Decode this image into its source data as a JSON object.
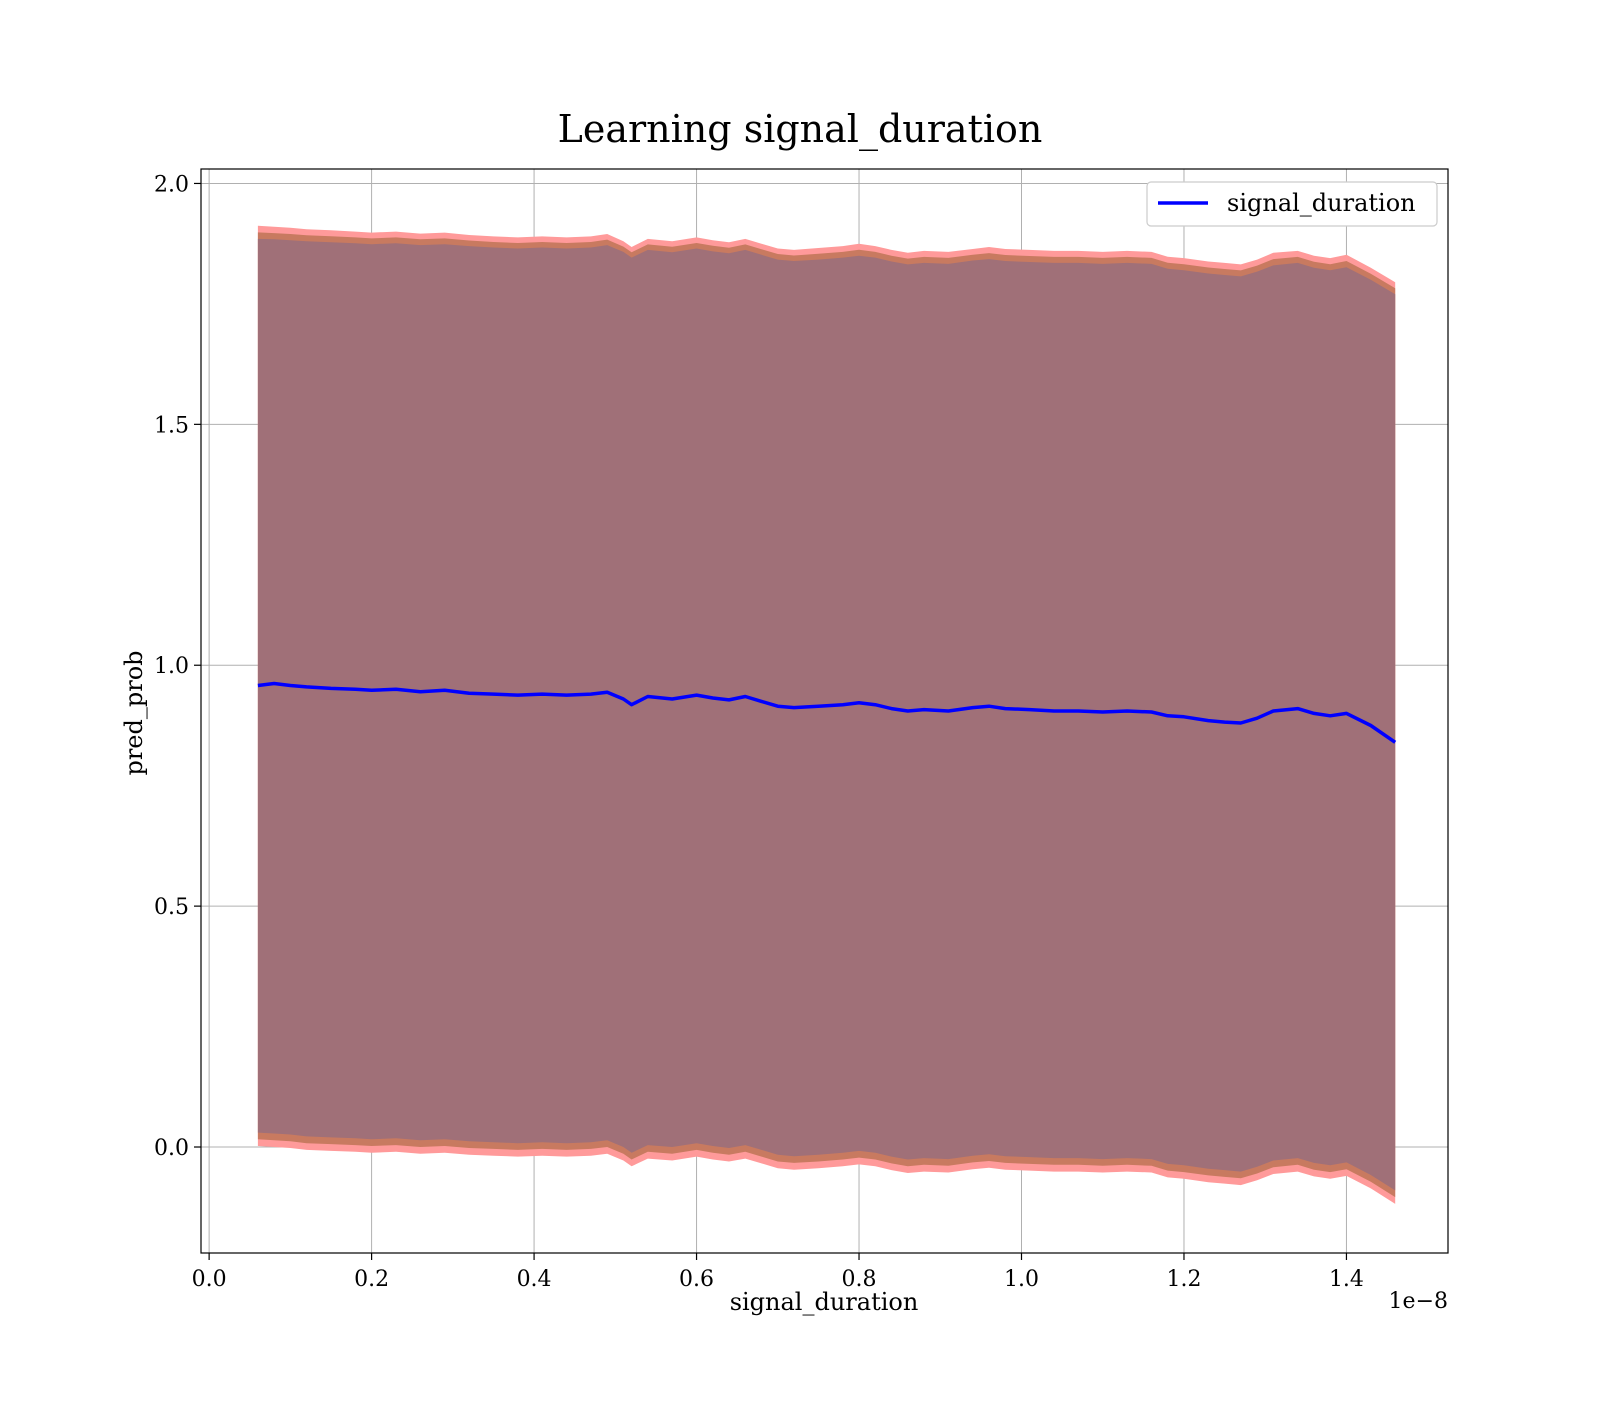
{
  "chart_data": {
    "type": "line",
    "title": "Learning signal_duration",
    "xlabel": "signal_duration",
    "ylabel": "pred_prob",
    "x_offset_text": "1e−8",
    "xlim": [
      -0.01,
      1.525
    ],
    "ylim": [
      -0.22,
      2.03
    ],
    "xticks": [
      0.0,
      0.2,
      0.4,
      0.6,
      0.8,
      1.0,
      1.2,
      1.4
    ],
    "xtick_labels": [
      "0.0",
      "0.2",
      "0.4",
      "0.6",
      "0.8",
      "1.0",
      "1.2",
      "1.4"
    ],
    "yticks": [
      0.0,
      0.5,
      1.0,
      1.5,
      2.0
    ],
    "ytick_labels": [
      "0.0",
      "0.5",
      "1.0",
      "1.5",
      "2.0"
    ],
    "grid": true,
    "legend": {
      "position": "top-right",
      "entries": [
        "signal_duration"
      ]
    },
    "colors": {
      "line": "#0000ff",
      "band_outer": "#ff9a9a",
      "band_mid": "#c87a60",
      "band_inner": "#a07078",
      "grid": "#b0b0b0"
    },
    "x": [
      0.06,
      0.08,
      0.1,
      0.12,
      0.15,
      0.18,
      0.2,
      0.23,
      0.26,
      0.29,
      0.32,
      0.35,
      0.38,
      0.41,
      0.44,
      0.47,
      0.49,
      0.51,
      0.52,
      0.54,
      0.57,
      0.6,
      0.62,
      0.64,
      0.66,
      0.68,
      0.7,
      0.72,
      0.75,
      0.78,
      0.8,
      0.82,
      0.84,
      0.86,
      0.88,
      0.91,
      0.94,
      0.96,
      0.98,
      1.01,
      1.04,
      1.07,
      1.1,
      1.13,
      1.16,
      1.18,
      1.2,
      1.23,
      1.25,
      1.27,
      1.29,
      1.31,
      1.34,
      1.36,
      1.38,
      1.4,
      1.43,
      1.46
    ],
    "series": [
      {
        "name": "signal_duration",
        "values": [
          0.958,
          0.962,
          0.958,
          0.955,
          0.952,
          0.95,
          0.948,
          0.95,
          0.945,
          0.948,
          0.942,
          0.94,
          0.938,
          0.94,
          0.938,
          0.94,
          0.944,
          0.93,
          0.918,
          0.935,
          0.93,
          0.938,
          0.932,
          0.928,
          0.935,
          0.925,
          0.915,
          0.912,
          0.915,
          0.918,
          0.922,
          0.918,
          0.91,
          0.905,
          0.908,
          0.905,
          0.912,
          0.915,
          0.91,
          0.908,
          0.905,
          0.905,
          0.903,
          0.905,
          0.903,
          0.895,
          0.893,
          0.885,
          0.882,
          0.88,
          0.89,
          0.905,
          0.91,
          0.9,
          0.895,
          0.9,
          0.875,
          0.84
        ]
      }
    ],
    "band": {
      "upper_outer": [
        1.912,
        1.91,
        1.908,
        1.905,
        1.903,
        1.9,
        1.898,
        1.9,
        1.896,
        1.898,
        1.893,
        1.89,
        1.888,
        1.89,
        1.888,
        1.89,
        1.895,
        1.88,
        1.868,
        1.885,
        1.88,
        1.888,
        1.882,
        1.878,
        1.885,
        1.875,
        1.865,
        1.862,
        1.866,
        1.87,
        1.875,
        1.87,
        1.862,
        1.856,
        1.86,
        1.858,
        1.864,
        1.868,
        1.864,
        1.862,
        1.86,
        1.86,
        1.858,
        1.86,
        1.858,
        1.848,
        1.845,
        1.838,
        1.835,
        1.832,
        1.842,
        1.856,
        1.86,
        1.85,
        1.845,
        1.852,
        1.825,
        1.795
      ],
      "upper_inner": [
        1.885,
        1.884,
        1.882,
        1.88,
        1.878,
        1.876,
        1.874,
        1.876,
        1.872,
        1.874,
        1.87,
        1.867,
        1.865,
        1.867,
        1.865,
        1.867,
        1.872,
        1.858,
        1.846,
        1.862,
        1.857,
        1.865,
        1.859,
        1.855,
        1.862,
        1.852,
        1.842,
        1.839,
        1.842,
        1.846,
        1.85,
        1.846,
        1.838,
        1.832,
        1.835,
        1.833,
        1.84,
        1.843,
        1.839,
        1.837,
        1.835,
        1.835,
        1.833,
        1.835,
        1.833,
        1.823,
        1.82,
        1.813,
        1.81,
        1.807,
        1.817,
        1.83,
        1.835,
        1.825,
        1.82,
        1.826,
        1.8,
        1.77
      ],
      "lower_inner": [
        0.03,
        0.028,
        0.026,
        0.022,
        0.02,
        0.018,
        0.016,
        0.018,
        0.014,
        0.016,
        0.012,
        0.01,
        0.008,
        0.01,
        0.008,
        0.01,
        0.014,
        0.0,
        -0.012,
        0.004,
        0.0,
        0.008,
        0.002,
        -0.002,
        0.004,
        -0.006,
        -0.016,
        -0.019,
        -0.016,
        -0.012,
        -0.008,
        -0.012,
        -0.02,
        -0.026,
        -0.023,
        -0.025,
        -0.018,
        -0.015,
        -0.019,
        -0.021,
        -0.023,
        -0.023,
        -0.025,
        -0.023,
        -0.025,
        -0.035,
        -0.038,
        -0.045,
        -0.048,
        -0.051,
        -0.041,
        -0.028,
        -0.023,
        -0.033,
        -0.038,
        -0.032,
        -0.058,
        -0.09
      ],
      "lower_outer": [
        0.002,
        0.0,
        -0.002,
        -0.006,
        -0.008,
        -0.01,
        -0.012,
        -0.01,
        -0.014,
        -0.012,
        -0.016,
        -0.018,
        -0.02,
        -0.018,
        -0.02,
        -0.018,
        -0.014,
        -0.028,
        -0.04,
        -0.024,
        -0.028,
        -0.02,
        -0.026,
        -0.03,
        -0.024,
        -0.034,
        -0.044,
        -0.047,
        -0.044,
        -0.04,
        -0.036,
        -0.04,
        -0.048,
        -0.054,
        -0.051,
        -0.053,
        -0.046,
        -0.043,
        -0.047,
        -0.049,
        -0.051,
        -0.051,
        -0.053,
        -0.051,
        -0.053,
        -0.063,
        -0.066,
        -0.073,
        -0.076,
        -0.079,
        -0.069,
        -0.056,
        -0.051,
        -0.061,
        -0.066,
        -0.06,
        -0.086,
        -0.118
      ]
    }
  }
}
